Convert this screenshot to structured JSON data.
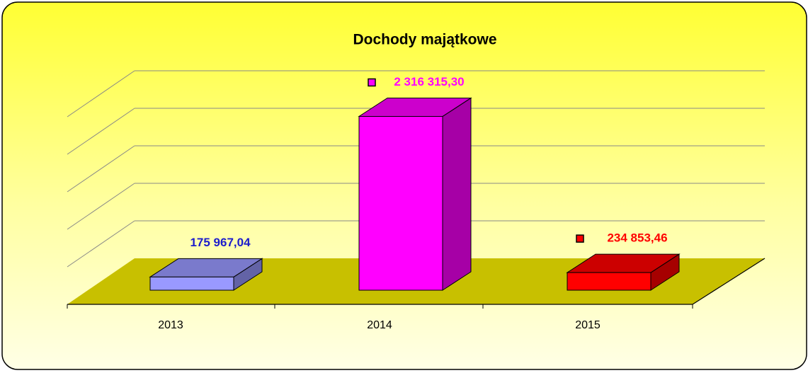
{
  "chart_data": {
    "type": "bar",
    "title": "Dochody majątkowe",
    "categories": [
      "2013",
      "2014",
      "2015"
    ],
    "values": [
      175967.04,
      2316315.3,
      234853.46
    ],
    "value_labels": [
      "175 967,04",
      "2 316 315,30",
      "234 853,46"
    ],
    "colors": [
      "#9999ff",
      "#ff00ff",
      "#ff0000"
    ],
    "label_colors": [
      "#1c1ccc",
      "#ff00ff",
      "#ff0000"
    ],
    "ylim": [
      0,
      2500000
    ],
    "yticks": [
      0,
      500000,
      1000000,
      1500000,
      2000000,
      2500000
    ],
    "grid": true
  }
}
